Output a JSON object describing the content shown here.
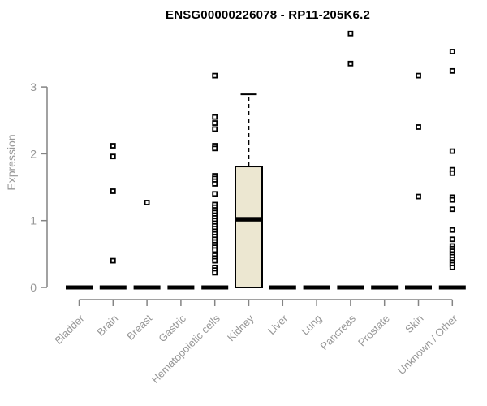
{
  "chart_data": {
    "type": "boxplot",
    "title": "ENSG00000226078 - RP11-205K6.2",
    "ylabel": "Expression",
    "xlabel": "",
    "yticks": [
      0,
      1,
      2,
      3
    ],
    "ylim": [
      0,
      3.9
    ],
    "grid": false,
    "legend": "none",
    "categories": [
      "Bladder",
      "Brain",
      "Breast",
      "Gastric",
      "Hematopoietic cells",
      "Kidney",
      "Liver",
      "Lung",
      "Pancreas",
      "Prostate",
      "Skin",
      "Unknown / Other"
    ],
    "boxes": [
      {
        "category": "Bladder",
        "q1": 0,
        "median": 0,
        "q3": 0,
        "whisker_low": 0,
        "whisker_high": 0,
        "outliers": []
      },
      {
        "category": "Brain",
        "q1": 0,
        "median": 0,
        "q3": 0,
        "whisker_low": 0,
        "whisker_high": 0,
        "outliers": [
          2.12,
          1.96,
          1.44,
          0.4
        ]
      },
      {
        "category": "Breast",
        "q1": 0,
        "median": 0,
        "q3": 0,
        "whisker_low": 0,
        "whisker_high": 0,
        "outliers": [
          1.27
        ]
      },
      {
        "category": "Gastric",
        "q1": 0,
        "median": 0,
        "q3": 0,
        "whisker_low": 0,
        "whisker_high": 0,
        "outliers": []
      },
      {
        "category": "Hematopoietic cells",
        "q1": 0,
        "median": 0,
        "q3": 0,
        "whisker_low": 0,
        "whisker_high": 0,
        "outliers": [
          3.17,
          2.55,
          2.46,
          2.37,
          2.12,
          2.08,
          1.67,
          1.63,
          1.59,
          1.55,
          1.4,
          1.24,
          1.2,
          1.16,
          1.12,
          1.08,
          1.04,
          1.0,
          0.96,
          0.92,
          0.88,
          0.84,
          0.8,
          0.76,
          0.72,
          0.68,
          0.64,
          0.6,
          0.56,
          0.48,
          0.44,
          0.4,
          0.3,
          0.26,
          0.22
        ]
      },
      {
        "category": "Kidney",
        "q1": 0,
        "median": 1.02,
        "q3": 1.81,
        "whisker_low": 0,
        "whisker_high": 2.89,
        "outliers": []
      },
      {
        "category": "Liver",
        "q1": 0,
        "median": 0,
        "q3": 0,
        "whisker_low": 0,
        "whisker_high": 0,
        "outliers": []
      },
      {
        "category": "Lung",
        "q1": 0,
        "median": 0,
        "q3": 0,
        "whisker_low": 0,
        "whisker_high": 0,
        "outliers": []
      },
      {
        "category": "Pancreas",
        "q1": 0,
        "median": 0,
        "q3": 0,
        "whisker_low": 0,
        "whisker_high": 0,
        "outliers": [
          3.8,
          3.35
        ]
      },
      {
        "category": "Prostate",
        "q1": 0,
        "median": 0,
        "q3": 0,
        "whisker_low": 0,
        "whisker_high": 0,
        "outliers": []
      },
      {
        "category": "Skin",
        "q1": 0,
        "median": 0,
        "q3": 0,
        "whisker_low": 0,
        "whisker_high": 0,
        "outliers": [
          3.17,
          2.4,
          1.36
        ]
      },
      {
        "category": "Unknown / Other",
        "q1": 0,
        "median": 0,
        "q3": 0,
        "whisker_low": 0,
        "whisker_high": 0,
        "outliers": [
          3.53,
          3.24,
          2.04,
          1.76,
          1.71,
          1.35,
          1.31,
          1.17,
          0.86,
          0.72,
          0.62,
          0.58,
          0.54,
          0.5,
          0.46,
          0.42,
          0.38,
          0.34,
          0.3
        ]
      }
    ],
    "colors": {
      "box_fill": "#ece7d1",
      "box_stroke": "#000000",
      "median": "#000000",
      "outlier_fill": "#ffffff",
      "outlier_stroke": "#000000",
      "axis_line": "#848484",
      "tick_label": "#979797",
      "title": "#000000",
      "background": "#ffffff"
    }
  }
}
